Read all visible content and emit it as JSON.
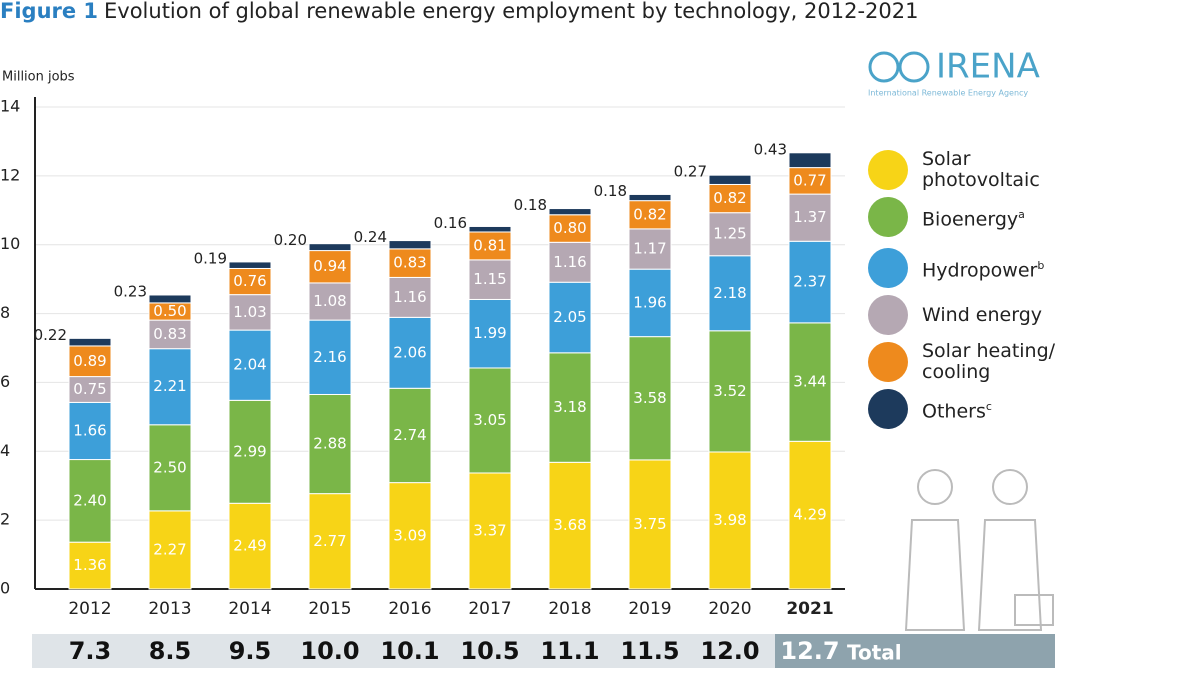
{
  "chart_data": {
    "type": "stacked-bar",
    "figure_label": "Figure 1",
    "title": "Evolution of global renewable energy employment by technology, 2012-2021",
    "y_label": "Million jobs",
    "logo": {
      "name": "IRENA",
      "subtitle": "International Renewable Energy Agency"
    },
    "categories": [
      "2012",
      "2013",
      "2014",
      "2015",
      "2016",
      "2017",
      "2018",
      "2019",
      "2020",
      "2021"
    ],
    "ylim": [
      0,
      14
    ],
    "yticks": [
      0,
      2,
      4,
      6,
      8,
      10,
      12,
      14
    ],
    "grid": true,
    "series": [
      {
        "name": "Solar photovoltaic",
        "color": "#f7d417",
        "values": [
          1.36,
          2.27,
          2.49,
          2.77,
          3.09,
          3.37,
          3.68,
          3.75,
          3.98,
          4.29
        ],
        "value_labels": [
          "1.36",
          "2.27",
          "2.49",
          "2.77",
          "3.09",
          "3.37",
          "3.68",
          "3.75",
          "3.98",
          "4.29"
        ]
      },
      {
        "name": "Bioenergy",
        "note": "a",
        "color": "#7ab648",
        "values": [
          2.4,
          2.5,
          2.99,
          2.88,
          2.74,
          3.05,
          3.18,
          3.58,
          3.52,
          3.44
        ],
        "value_labels": [
          "2.40",
          "2.50",
          "2.99",
          "2.88",
          "2.74",
          "3.05",
          "3.18",
          "3.58",
          "3.52",
          "3.44"
        ]
      },
      {
        "name": "Hydropower",
        "note": "b",
        "color": "#3d9fd9",
        "values": [
          1.66,
          2.21,
          2.04,
          2.16,
          2.06,
          1.99,
          2.05,
          1.96,
          2.18,
          2.37
        ],
        "value_labels": [
          "1.66",
          "2.21",
          "2.04",
          "2.16",
          "2.06",
          "1.99",
          "2.05",
          "1.96",
          "2.18",
          "2.37"
        ]
      },
      {
        "name": "Wind energy",
        "color": "#b5a8b3",
        "values": [
          0.75,
          0.83,
          1.03,
          1.08,
          1.16,
          1.15,
          1.16,
          1.17,
          1.25,
          1.37
        ],
        "value_labels": [
          "0.75",
          "0.83",
          "1.03",
          "1.08",
          "1.16",
          "1.15",
          "1.16",
          "1.17",
          "1.25",
          "1.37"
        ]
      },
      {
        "name": "Solar heating/ cooling",
        "color": "#ee8a1d",
        "values": [
          0.89,
          0.5,
          0.76,
          0.94,
          0.83,
          0.81,
          0.8,
          0.82,
          0.82,
          0.77
        ],
        "value_labels": [
          "0.89",
          "0.50",
          "0.76",
          "0.94",
          "0.83",
          "0.81",
          "0.80",
          "0.82",
          "0.82",
          "0.77"
        ]
      },
      {
        "name": "Others",
        "note": "c",
        "color": "#1d3a5c",
        "values": [
          0.22,
          0.23,
          0.19,
          0.2,
          0.24,
          0.16,
          0.18,
          0.18,
          0.27,
          0.43
        ],
        "value_labels": [
          "0.22",
          "0.23",
          "0.19",
          "0.20",
          "0.24",
          "0.16",
          "0.18",
          "0.18",
          "0.27",
          "0.43"
        ]
      }
    ],
    "totals": {
      "name": "Total",
      "values": [
        7.3,
        8.5,
        9.5,
        10.0,
        10.1,
        10.5,
        11.1,
        11.5,
        12.0,
        12.7
      ],
      "value_labels": [
        "7.3",
        "8.5",
        "9.5",
        "10.0",
        "10.1",
        "10.5",
        "11.1",
        "11.5",
        "12.0",
        "12.7"
      ]
    }
  }
}
